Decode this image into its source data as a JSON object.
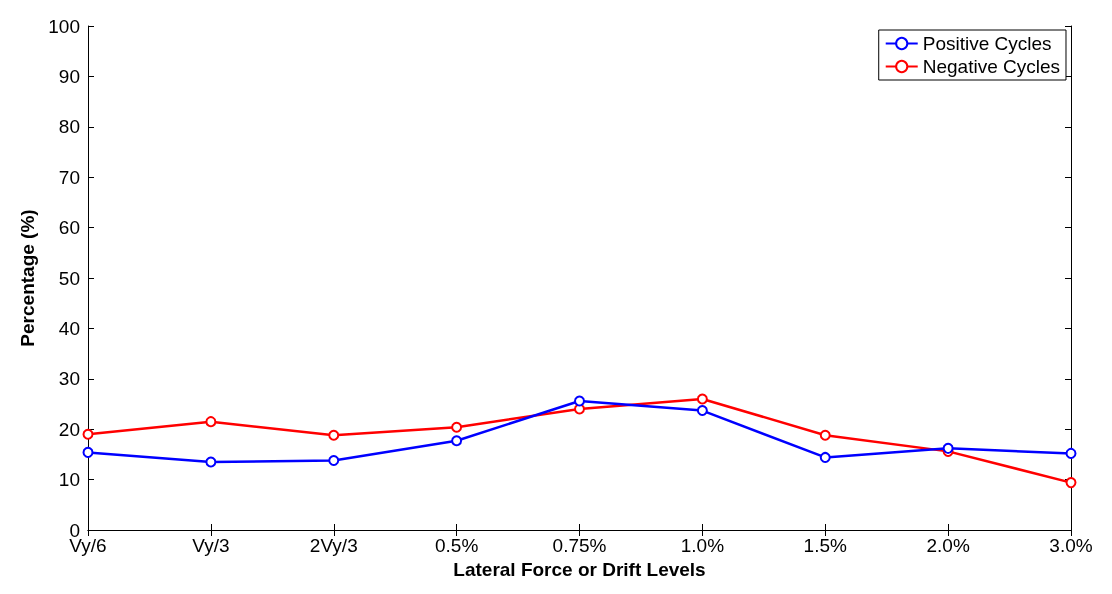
{
  "chart_data": {
    "type": "line",
    "xlabel": "Lateral Force or Drift Levels",
    "ylabel": "Percentage (%)",
    "categories": [
      "Vy/6",
      "Vy/3",
      "2Vy/3",
      "0.5%",
      "0.75%",
      "1.0%",
      "1.5%",
      "2.0%",
      "3.0%"
    ],
    "series": [
      {
        "name": "Positive Cycles",
        "color": "#0000ff",
        "values": [
          15.4,
          13.5,
          13.8,
          17.7,
          25.6,
          23.7,
          14.4,
          16.2,
          15.2
        ]
      },
      {
        "name": "Negative Cycles",
        "color": "#ff0000",
        "values": [
          19.0,
          21.5,
          18.8,
          20.4,
          24.0,
          26.0,
          18.8,
          15.6,
          9.4
        ]
      }
    ],
    "ylim": [
      0,
      100
    ],
    "yticks": [
      0,
      10,
      20,
      30,
      40,
      50,
      60,
      70,
      80,
      90,
      100
    ],
    "grid": false,
    "legend": "top right",
    "marker": "circle",
    "line_style": "solid"
  }
}
